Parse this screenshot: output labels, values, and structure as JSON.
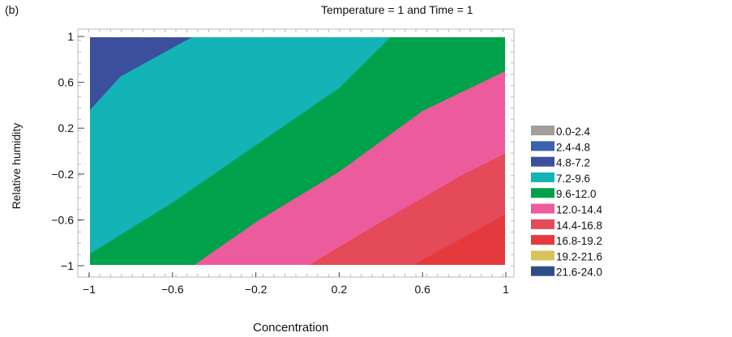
{
  "panel_label": "(b)",
  "chart_data": {
    "type": "contour",
    "title": "Temperature = 1 and Time = 1",
    "xlabel": "Concentration",
    "ylabel": "Relative humidity",
    "xlim": [
      -1,
      1
    ],
    "ylim": [
      -1,
      1
    ],
    "x_ticks": [
      "-1",
      "-0.6",
      "-0.2",
      "0.2",
      "0.6",
      "1"
    ],
    "y_ticks": [
      "1",
      "0.6",
      "0.2",
      "-0.2",
      "-0.6",
      "-1"
    ],
    "legend_position": "right",
    "levels": [
      {
        "range": "0.0-2.4",
        "color": "#a39e98"
      },
      {
        "range": "2.4-4.8",
        "color": "#3a62b0"
      },
      {
        "range": "4.8-7.2",
        "color": "#3b4f9c"
      },
      {
        "range": "7.2-9.6",
        "color": "#14b3b6"
      },
      {
        "range": "9.6-12.0",
        "color": "#00a14b"
      },
      {
        "range": "12.0-14.4",
        "color": "#ec5b9b"
      },
      {
        "range": "14.4-16.8",
        "color": "#e44a57"
      },
      {
        "range": "16.8-19.2",
        "color": "#e53a3d"
      },
      {
        "range": "19.2-21.6",
        "color": "#d6c35a"
      },
      {
        "range": "21.6-24.0",
        "color": "#2e4f85"
      }
    ],
    "region_boundaries": [
      {
        "between": "4.8-7.2 / 7.2-9.6",
        "points": [
          [
            -1,
            0.35
          ],
          [
            -0.85,
            0.65
          ],
          [
            -0.5,
            1
          ]
        ]
      },
      {
        "between": "7.2-9.6 / 9.6-12.0",
        "points": [
          [
            -1,
            -0.9
          ],
          [
            -0.6,
            -0.45
          ],
          [
            -0.2,
            0.05
          ],
          [
            0.2,
            0.55
          ],
          [
            0.45,
            1
          ]
        ]
      },
      {
        "between": "9.6-12.0 / 12.0-14.4",
        "points": [
          [
            -0.5,
            -1
          ],
          [
            -0.2,
            -0.62
          ],
          [
            0.2,
            -0.18
          ],
          [
            0.6,
            0.35
          ],
          [
            1,
            0.7
          ]
        ]
      },
      {
        "between": "12.0-14.4 / 14.4-16.8",
        "points": [
          [
            0.05,
            -1
          ],
          [
            0.4,
            -0.62
          ],
          [
            0.8,
            -0.2
          ],
          [
            1,
            -0.02
          ]
        ]
      },
      {
        "between": "14.4-16.8 / 16.8-19.2",
        "points": [
          [
            0.55,
            -1
          ],
          [
            0.8,
            -0.75
          ],
          [
            1,
            -0.55
          ]
        ]
      }
    ]
  }
}
